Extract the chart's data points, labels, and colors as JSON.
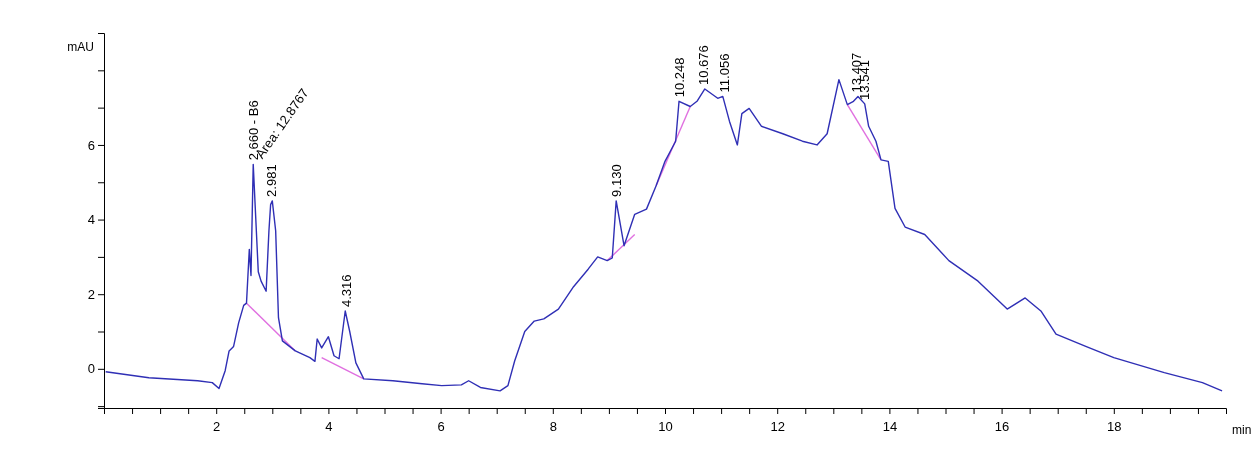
{
  "chart_data": {
    "type": "line",
    "xlabel": "min",
    "ylabel": "mAU",
    "xlim": [
      0,
      20
    ],
    "ylim": [
      -1.05,
      9
    ],
    "xticks": [
      {
        "value": 0.5,
        "label": null
      },
      {
        "value": 1,
        "label": null
      },
      {
        "value": 1.5,
        "label": null
      },
      2,
      {
        "value": 2.5,
        "label": null
      },
      {
        "value": 3,
        "label": null
      },
      {
        "value": 3.5,
        "label": null
      },
      4,
      {
        "value": 4.5,
        "label": null
      },
      {
        "value": 5,
        "label": null
      },
      {
        "value": 5.5,
        "label": null
      },
      6,
      {
        "value": 6.5,
        "label": null
      },
      {
        "value": 7,
        "label": null
      },
      {
        "value": 7.5,
        "label": null
      },
      8,
      {
        "value": 8.5,
        "label": null
      },
      {
        "value": 9,
        "label": null
      },
      {
        "value": 9.5,
        "label": null
      },
      10,
      {
        "value": 10.5,
        "label": null
      },
      {
        "value": 11,
        "label": null
      },
      {
        "value": 11.5,
        "label": null
      },
      12,
      {
        "value": 12.5,
        "label": null
      },
      {
        "value": 13,
        "label": null
      },
      {
        "value": 13.5,
        "label": null
      },
      14,
      {
        "value": 14.5,
        "label": null
      },
      {
        "value": 15,
        "label": null
      },
      {
        "value": 15.5,
        "label": null
      },
      16,
      {
        "value": 16.5,
        "label": null
      },
      {
        "value": 17,
        "label": null
      },
      {
        "value": 17.5,
        "label": null
      },
      18,
      {
        "value": 18.5,
        "label": null
      },
      {
        "value": 19,
        "label": null
      },
      {
        "value": 19.5,
        "label": null
      }
    ],
    "yticks": [
      {
        "value": -1,
        "label": null
      },
      0,
      {
        "value": 1,
        "label": null
      },
      2,
      {
        "value": 3,
        "label": null
      },
      4,
      {
        "value": 5,
        "label": null
      },
      6,
      {
        "value": 7,
        "label": null
      },
      {
        "value": 8,
        "label": null
      }
    ],
    "grid": false,
    "marker": "none",
    "line_style": "solid",
    "series": [
      {
        "color": "#2f2fb5",
        "x": [
          0.03,
          0.8,
          1.67,
          1.93,
          2.05,
          2.16,
          2.23,
          2.31,
          2.4,
          2.49,
          2.54,
          2.59,
          2.62,
          2.66,
          2.75,
          2.8,
          2.89,
          2.94,
          2.97,
          3.0,
          3.06,
          3.11,
          3.18,
          3.41,
          3.67,
          3.76,
          3.8,
          3.88,
          4.0,
          4.1,
          4.19,
          4.3,
          4.38,
          4.49,
          4.63,
          5.15,
          5.67,
          6.02,
          6.37,
          6.5,
          6.71,
          7.06,
          7.2,
          7.32,
          7.5,
          7.67,
          7.84,
          8.1,
          8.37,
          8.63,
          8.8,
          8.97,
          9.06,
          9.13,
          9.27,
          9.46,
          9.67,
          9.84,
          10.0,
          10.19,
          10.25,
          10.45,
          10.57,
          10.71,
          10.94,
          11.03,
          11.15,
          11.29,
          11.37,
          11.5,
          11.72,
          12.1,
          12.45,
          12.71,
          12.89,
          13.1,
          13.25,
          13.36,
          13.44,
          13.56,
          13.63,
          13.76,
          13.85,
          13.98,
          14.1,
          14.28,
          14.63,
          15.06,
          15.58,
          16.1,
          16.42,
          16.7,
          16.97,
          17.5,
          18.0,
          18.9,
          19.58,
          19.93
        ],
        "values": [
          -0.08,
          -0.24,
          -0.32,
          -0.37,
          -0.53,
          -0.05,
          0.48,
          0.6,
          1.23,
          1.7,
          1.76,
          3.2,
          2.5,
          5.48,
          2.6,
          2.35,
          2.08,
          3.7,
          4.4,
          4.5,
          3.7,
          1.37,
          0.75,
          0.48,
          0.3,
          0.2,
          0.8,
          0.56,
          0.86,
          0.35,
          0.27,
          1.55,
          1.0,
          0.16,
          -0.27,
          -0.32,
          -0.4,
          -0.45,
          -0.43,
          -0.32,
          -0.5,
          -0.59,
          -0.45,
          0.21,
          1.0,
          1.28,
          1.34,
          1.6,
          2.2,
          2.67,
          3.0,
          2.9,
          2.97,
          4.5,
          3.3,
          4.14,
          4.28,
          4.9,
          5.56,
          6.1,
          7.17,
          7.03,
          7.17,
          7.5,
          7.25,
          7.3,
          6.63,
          6.0,
          6.84,
          6.98,
          6.5,
          6.3,
          6.1,
          6.0,
          6.3,
          7.75,
          7.08,
          7.17,
          7.3,
          7.1,
          6.5,
          6.1,
          5.6,
          5.56,
          4.3,
          3.8,
          3.6,
          2.9,
          2.35,
          1.6,
          1.9,
          1.55,
          0.93,
          0.6,
          0.3,
          -0.1,
          -0.37,
          -0.59
        ]
      },
      {
        "color": "#e070e0",
        "x": [
          2.54,
          3.41
        ],
        "values": [
          1.76,
          0.48
        ]
      },
      {
        "color": "#e070e0",
        "x": [
          3.88,
          4.63
        ],
        "values": [
          0.3,
          -0.27
        ]
      },
      {
        "color": "#e070e0",
        "x": [
          8.97,
          9.46
        ],
        "values": [
          2.9,
          3.6
        ]
      },
      {
        "color": "#e070e0",
        "x": [
          9.84,
          10.45
        ],
        "values": [
          4.9,
          7.03
        ]
      },
      {
        "color": "#e070e0",
        "x": [
          13.25,
          13.85
        ],
        "values": [
          7.08,
          5.6
        ]
      }
    ],
    "annotations": [
      {
        "text": "2.660 - B6",
        "x": 2.66,
        "y": 5.48
      },
      {
        "text": "2.981",
        "x": 2.981,
        "y": 4.5
      },
      {
        "text": "Area: 12.8767",
        "x": 2.75,
        "y": 5.5
      },
      {
        "text": "4.316",
        "x": 4.316,
        "y": 1.55
      },
      {
        "text": "9.130",
        "x": 9.13,
        "y": 4.5
      },
      {
        "text": "10.248",
        "x": 10.248,
        "y": 7.17
      },
      {
        "text": "10.676",
        "x": 10.676,
        "y": 7.5
      },
      {
        "text": "11.056",
        "x": 11.056,
        "y": 7.3
      },
      {
        "text": "13.407",
        "x": 13.407,
        "y": 7.3
      },
      {
        "text": "13.541",
        "x": 13.541,
        "y": 7.1
      }
    ]
  }
}
